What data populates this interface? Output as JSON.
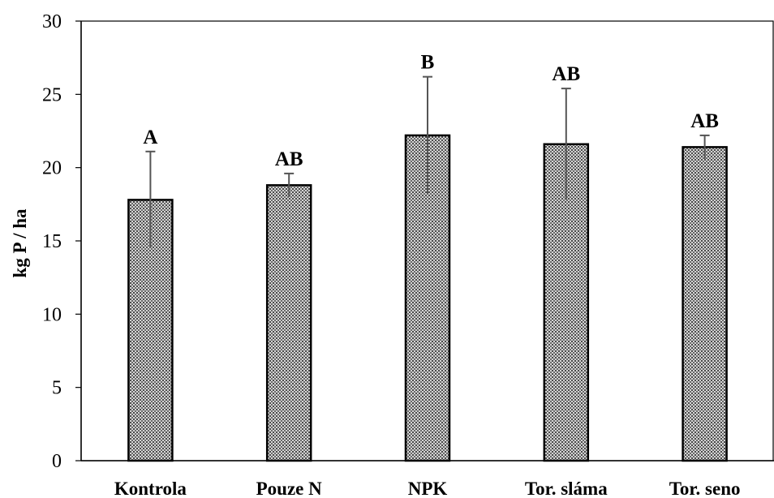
{
  "chart_data": {
    "type": "bar",
    "title": "",
    "xlabel": "",
    "ylabel": "kg P / ha",
    "ylim": [
      0,
      30
    ],
    "yticks": [
      0,
      5,
      10,
      15,
      20,
      25,
      30
    ],
    "grid": false,
    "legend": "none",
    "categories": [
      "Kontrola",
      "Pouze N",
      "NPK",
      "Tor. sláma",
      "Tor. seno"
    ],
    "values": [
      17.8,
      18.8,
      22.2,
      21.6,
      21.4
    ],
    "errors": [
      3.3,
      0.8,
      4.0,
      3.8,
      0.8
    ],
    "annotations": [
      "A",
      "AB",
      "B",
      "AB",
      "AB"
    ],
    "bar_color": "#9a9a9a",
    "bar_pattern": "dotted-grey"
  }
}
